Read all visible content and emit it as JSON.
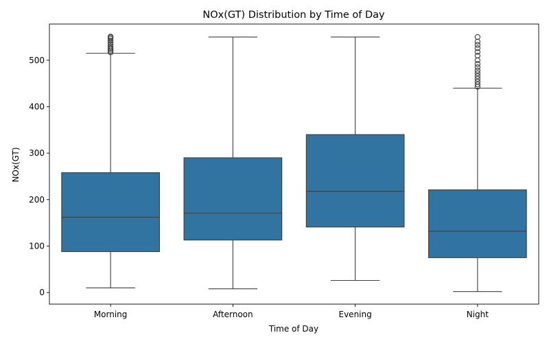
{
  "chart_data": {
    "type": "box",
    "title": "NOx(GT) Distribution by Time of Day",
    "xlabel": "Time of Day",
    "ylabel": "NOx(GT)",
    "ylim": [
      -25,
      578
    ],
    "yticks": [
      0,
      100,
      200,
      300,
      400,
      500
    ],
    "grid": false,
    "legend": "none",
    "box_color": "#3274a1",
    "line_color": "#3d3d3d",
    "categories": [
      "Morning",
      "Afternoon",
      "Evening",
      "Night"
    ],
    "boxes": [
      {
        "category": "Morning",
        "whisker_low": 10,
        "q1": 88,
        "median": 162,
        "q3": 258,
        "whisker_high": 515,
        "outliers": [
          517,
          520,
          523,
          526,
          530,
          534,
          538,
          542,
          546,
          549,
          551
        ]
      },
      {
        "category": "Afternoon",
        "whisker_low": 8,
        "q1": 113,
        "median": 171,
        "q3": 290,
        "whisker_high": 550,
        "outliers": []
      },
      {
        "category": "Evening",
        "whisker_low": 26,
        "q1": 141,
        "median": 218,
        "q3": 340,
        "whisker_high": 550,
        "outliers": []
      },
      {
        "category": "Night",
        "whisker_low": 2,
        "q1": 75,
        "median": 132,
        "q3": 221,
        "whisker_high": 440,
        "outliers": [
          443,
          448,
          454,
          460,
          466,
          472,
          478,
          485,
          492,
          500,
          510,
          518,
          526,
          533,
          540,
          550
        ]
      }
    ]
  }
}
